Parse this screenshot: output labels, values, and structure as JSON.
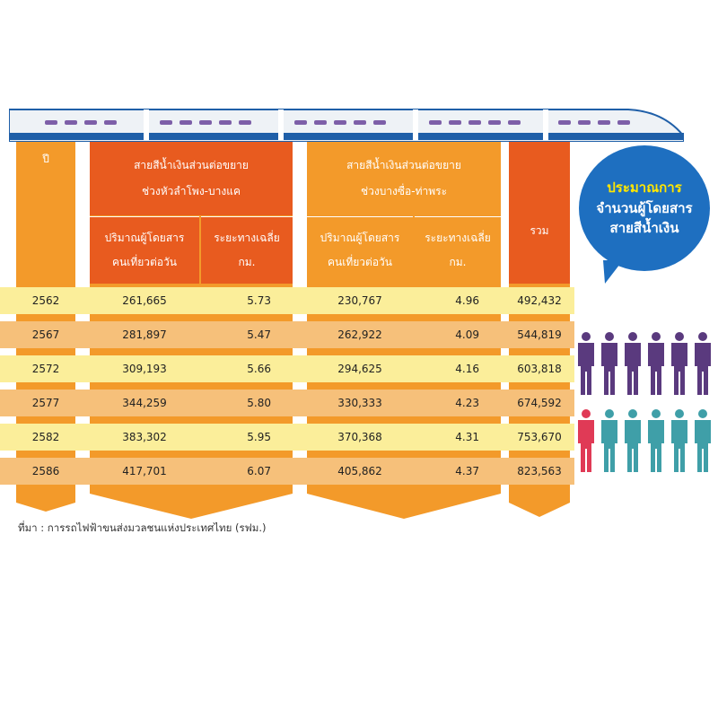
{
  "colors": {
    "dark_orange": "#e85b1f",
    "mid_orange": "#f39a2a",
    "light_orange": "#f7b969",
    "yellow_row": "#fbee9a",
    "orange_row": "#f6c07a",
    "bubble_blue": "#1e6fc0",
    "bubble_title_yellow": "#ffe600",
    "person_purple": "#5a3a7e",
    "person_teal": "#3f9fa8",
    "person_red": "#e03a56"
  },
  "headers": {
    "year": "ปี",
    "group1_line1": "สายสีน้ำเงินส่วนต่อขยาย",
    "group1_line2": "ช่วงหัวลำโพง-บางแค",
    "group2_line1": "สายสีน้ำเงินส่วนต่อขยาย",
    "group2_line2": "ช่วงบางซื่อ-ท่าพระ",
    "passengers_line1": "ปริมาณผู้โดยสาร",
    "passengers_line2": "คนเที่ยวต่อวัน",
    "distance_line1": "ระยะทางเฉลี่ย",
    "distance_line2": "กม.",
    "total": "รวม"
  },
  "bubble": {
    "line1": "ประมาณการ",
    "line2": "จำนวนผู้โดยสาร",
    "line3": "สายสีน้ำเงิน"
  },
  "chart_data": {
    "type": "table",
    "columns": [
      "ปี",
      "ปริมาณผู้โดยสาร คนเที่ยวต่อวัน (ช่วงหัวลำโพง-บางแค)",
      "ระยะทางเฉลี่ย กม. (ช่วงหัวลำโพง-บางแค)",
      "ปริมาณผู้โดยสาร คนเที่ยวต่อวัน (ช่วงบางซื่อ-ท่าพระ)",
      "ระยะทางเฉลี่ย กม. (ช่วงบางซื่อ-ท่าพระ)",
      "รวม"
    ],
    "rows": [
      [
        "2562",
        "261,665",
        "5.73",
        "230,767",
        "4.96",
        "492,432"
      ],
      [
        "2567",
        "281,897",
        "5.47",
        "262,922",
        "4.09",
        "544,819"
      ],
      [
        "2572",
        "309,193",
        "5.66",
        "294,625",
        "4.16",
        "603,818"
      ],
      [
        "2577",
        "344,259",
        "5.80",
        "330,333",
        "4.23",
        "674,592"
      ],
      [
        "2582",
        "383,302",
        "5.95",
        "370,368",
        "4.31",
        "753,670"
      ],
      [
        "2586",
        "417,701",
        "6.07",
        "405,862",
        "4.37",
        "823,563"
      ]
    ]
  },
  "source": "ที่มา : การรถไฟฟ้าขนส่งมวลชนแห่งประเทศไทย (รฟม.)",
  "people": {
    "purple_count": 6,
    "highlight_count": 1,
    "teal_count": 5
  }
}
